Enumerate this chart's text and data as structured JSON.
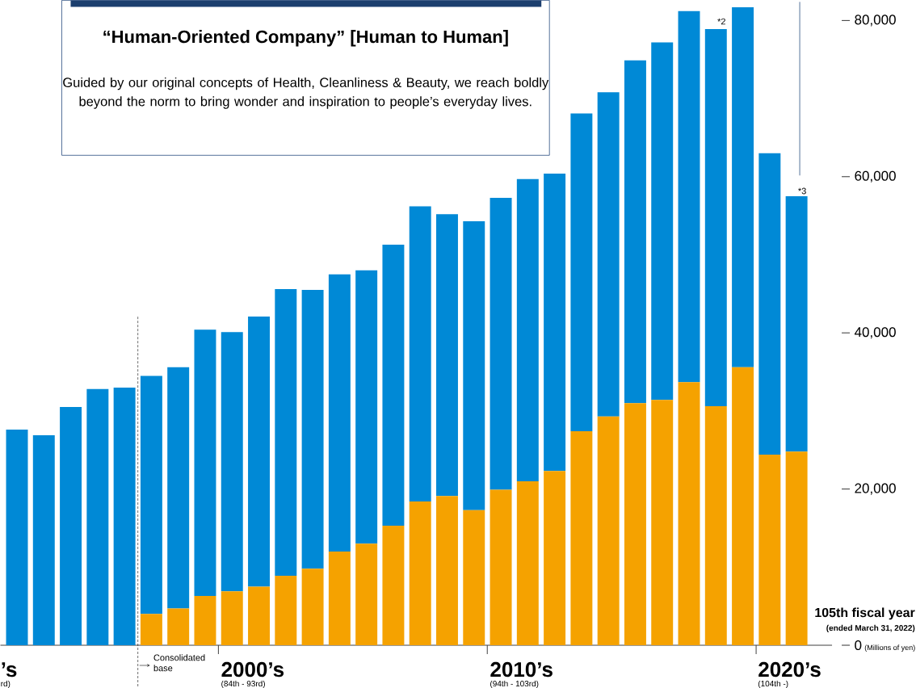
{
  "chart_data": {
    "type": "bar",
    "stacked": true,
    "title": "“Human-Oriented Company” [Human to Human]",
    "subtitle": "Guided by our original concepts of Health, Cleanliness & Beauty, we reach boldly beyond the norm to bring wonder and inspiration to people’s everyday lives.",
    "ylabel": "(Millions of yen)",
    "categories": [
      null,
      null,
      null,
      null,
      null,
      null,
      null,
      null,
      null,
      null,
      null,
      null,
      null,
      null,
      null,
      null,
      null,
      null,
      null,
      null,
      null,
      null,
      null,
      null,
      null,
      null,
      null,
      null,
      null,
      null
    ],
    "series": [
      {
        "color": "#f5a200",
        "values": [
          null,
          null,
          null,
          null,
          null,
          4000,
          4700,
          6300,
          6900,
          7500,
          8900,
          9800,
          12000,
          13000,
          15300,
          18400,
          19100,
          17300,
          19900,
          21000,
          22300,
          27400,
          29300,
          31000,
          31400,
          33700,
          30600,
          35600,
          24400,
          24800
        ]
      },
      {
        "color": "#0089d6",
        "values": [
          27600,
          26900,
          30500,
          32800,
          33000,
          30500,
          30900,
          34100,
          33200,
          34600,
          36700,
          35700,
          35500,
          35000,
          36000,
          37800,
          36100,
          37000,
          37400,
          38700,
          38100,
          40700,
          41500,
          43900,
          45800,
          47500,
          48300,
          46100,
          38600,
          32700
        ]
      }
    ],
    "ylim": [
      0,
      82000
    ],
    "yticks": [
      0,
      {
        "value": 20000,
        "label": "20,000"
      },
      {
        "value": 40000,
        "label": "40,000"
      },
      {
        "value": 60000,
        "label": "60,000"
      },
      {
        "value": 80000,
        "label": "80,000"
      }
    ],
    "annotations": [
      "’s",
      "rd)",
      "2000’s",
      "(84th - 93rd)",
      "2010’s",
      "(94th - 103rd)",
      "2020’s",
      "(104th -)",
      "105th fiscal year",
      "(ended March 31, 2022)",
      "Consolidated base",
      "*2",
      "*3"
    ]
  }
}
